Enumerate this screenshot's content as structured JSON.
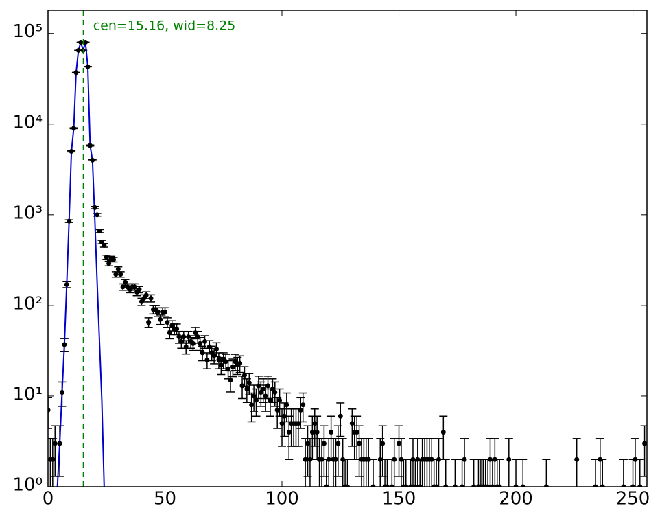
{
  "chart_data": {
    "type": "errorbar",
    "log_y": true,
    "annotation": "cen=15.16, wid=8.25",
    "annotation_color": "#008000",
    "vline": 15.16,
    "xlim": [
      0,
      256
    ],
    "xticks": [
      0,
      50,
      100,
      150,
      200,
      250
    ],
    "ylim": [
      1,
      180000
    ],
    "yticks": [
      {
        "value": 1,
        "label": "10⁰"
      },
      {
        "value": 10,
        "label": "10¹"
      },
      {
        "value": 100,
        "label": "10²"
      },
      {
        "value": 1000,
        "label": "10³"
      },
      {
        "value": 10000,
        "label": "10⁴"
      },
      {
        "value": 100000,
        "label": "10⁵"
      }
    ],
    "color": "#000000",
    "x": [
      0,
      1,
      2,
      3,
      5,
      6,
      7,
      8,
      9,
      10,
      11,
      12,
      13,
      14,
      15,
      16,
      17,
      18,
      19,
      20,
      21,
      22,
      23,
      24,
      25,
      26,
      27,
      28,
      29,
      30,
      31,
      32,
      33,
      34,
      35,
      36,
      37,
      38,
      39,
      40,
      41,
      42,
      43,
      44,
      45,
      46,
      47,
      48,
      49,
      50,
      51,
      52,
      53,
      54,
      55,
      56,
      57,
      58,
      59,
      60,
      61,
      62,
      63,
      64,
      65,
      66,
      67,
      68,
      69,
      70,
      71,
      72,
      73,
      74,
      75,
      76,
      77,
      78,
      79,
      80,
      81,
      82,
      83,
      84,
      85,
      86,
      87,
      88,
      89,
      90,
      91,
      92,
      93,
      94,
      95,
      96,
      97,
      98,
      99,
      100,
      101,
      102,
      103,
      104,
      105,
      106,
      107,
      108,
      109,
      110,
      111,
      112,
      113,
      114,
      115,
      116,
      117,
      118,
      119,
      120,
      121,
      122,
      123,
      124,
      125,
      126,
      127,
      128,
      130,
      131,
      132,
      133,
      134,
      135,
      136,
      137,
      139,
      142,
      143,
      144,
      145,
      147,
      148,
      150,
      151,
      152,
      153,
      155,
      156,
      157,
      158,
      159,
      160,
      161,
      162,
      163,
      164,
      165,
      166,
      167,
      169,
      170,
      174,
      177,
      178,
      182,
      184,
      185,
      186,
      187,
      188,
      189,
      190,
      191,
      192,
      193,
      197,
      200,
      203,
      213,
      226,
      234,
      236,
      237,
      246,
      250,
      251,
      253,
      255
    ],
    "values": [
      7,
      2,
      2,
      3,
      3,
      11,
      37,
      170,
      850,
      5000,
      9000,
      37000,
      65000,
      80000,
      65000,
      80000,
      43000,
      5800,
      4000,
      1200,
      1000,
      660,
      500,
      460,
      340,
      290,
      330,
      320,
      220,
      250,
      220,
      160,
      180,
      160,
      150,
      160,
      160,
      140,
      150,
      110,
      120,
      130,
      65,
      120,
      90,
      90,
      85,
      70,
      85,
      85,
      65,
      50,
      60,
      55,
      55,
      45,
      40,
      45,
      35,
      45,
      40,
      38,
      50,
      45,
      38,
      30,
      40,
      25,
      35,
      30,
      28,
      33,
      25,
      22,
      25,
      24,
      20,
      15,
      21,
      24,
      22,
      23,
      13,
      17,
      12,
      14,
      8,
      10,
      9,
      13,
      11,
      12,
      10,
      13,
      9,
      12,
      11,
      7,
      9,
      5,
      6,
      8,
      4,
      5,
      5,
      5,
      5,
      7,
      8,
      2,
      3,
      2,
      4,
      5,
      4,
      2,
      2,
      3,
      1,
      2,
      4,
      2,
      2,
      3,
      6,
      2,
      1,
      1,
      5,
      4,
      4,
      3,
      2,
      2,
      2,
      2,
      1,
      2,
      3,
      1,
      1,
      1,
      2,
      3,
      2,
      1,
      1,
      1,
      2,
      1,
      2,
      1,
      2,
      2,
      2,
      2,
      2,
      1,
      1,
      2,
      4,
      1,
      1,
      1,
      2,
      1,
      1,
      1,
      1,
      1,
      1,
      2,
      1,
      2,
      1,
      1,
      2,
      1,
      1,
      1,
      2,
      1,
      2,
      1,
      1,
      1,
      2,
      1,
      3
    ],
    "errors": [
      2.6,
      1.4,
      1.4,
      1.7,
      1.7,
      3.3,
      6.1,
      13,
      29,
      71,
      95,
      192,
      255,
      283,
      255,
      283,
      207,
      76,
      63,
      35,
      32,
      26,
      22,
      21,
      18,
      17,
      18,
      18,
      15,
      16,
      15,
      13,
      13,
      13,
      12,
      13,
      13,
      12,
      12,
      10,
      11,
      11,
      8.1,
      11,
      9.5,
      9.5,
      9.2,
      8.4,
      9.2,
      9.2,
      8.1,
      7.1,
      7.7,
      7.4,
      7.4,
      6.7,
      6.3,
      6.7,
      5.9,
      6.7,
      6.3,
      6.2,
      7.1,
      6.7,
      6.2,
      5.5,
      6.3,
      5,
      5.9,
      5.5,
      5.3,
      5.7,
      5,
      4.7,
      5,
      4.9,
      4.5,
      3.9,
      4.6,
      4.9,
      4.7,
      4.8,
      3.6,
      4.1,
      3.5,
      3.7,
      2.8,
      3.2,
      3,
      3.6,
      3.3,
      3.5,
      3.2,
      3.6,
      3,
      3.5,
      3.3,
      2.6,
      3,
      2.2,
      2.4,
      2.8,
      2,
      2.2,
      2.2,
      2.2,
      2.2,
      2.6,
      2.8,
      1.4,
      1.7,
      1.4,
      2,
      2.2,
      2,
      1.4,
      1.4,
      1.7,
      1,
      1.4,
      2,
      1.4,
      1.4,
      1.7,
      2.4,
      1.4,
      1,
      1,
      2.2,
      2,
      2,
      1.7,
      1.4,
      1.4,
      1.4,
      1.4,
      1,
      1.4,
      1.7,
      1,
      1,
      1,
      1.4,
      1.7,
      1.4,
      1,
      1,
      1,
      1.4,
      1,
      1.4,
      1,
      1.4,
      1.4,
      1.4,
      1.4,
      1.4,
      1,
      1,
      1.4,
      2,
      1,
      1,
      1,
      1.4,
      1,
      1,
      1,
      1,
      1,
      1,
      1.4,
      1,
      1.4,
      1,
      1,
      1.4,
      1,
      1,
      1,
      1.4,
      1,
      1.4,
      1,
      1,
      1,
      1.4,
      1,
      1.7
    ],
    "fit": {
      "color": "#0000cc",
      "x": [
        4,
        5,
        6,
        7,
        8,
        9,
        10,
        11,
        12,
        13,
        14,
        15,
        16,
        17,
        18,
        19,
        20,
        21,
        22,
        23,
        24
      ],
      "values": [
        1,
        3,
        11,
        37,
        170,
        850,
        5000,
        9000,
        37000,
        65000,
        80000,
        65000,
        80000,
        43000,
        5800,
        4000,
        900,
        180,
        40,
        9,
        1
      ]
    }
  }
}
